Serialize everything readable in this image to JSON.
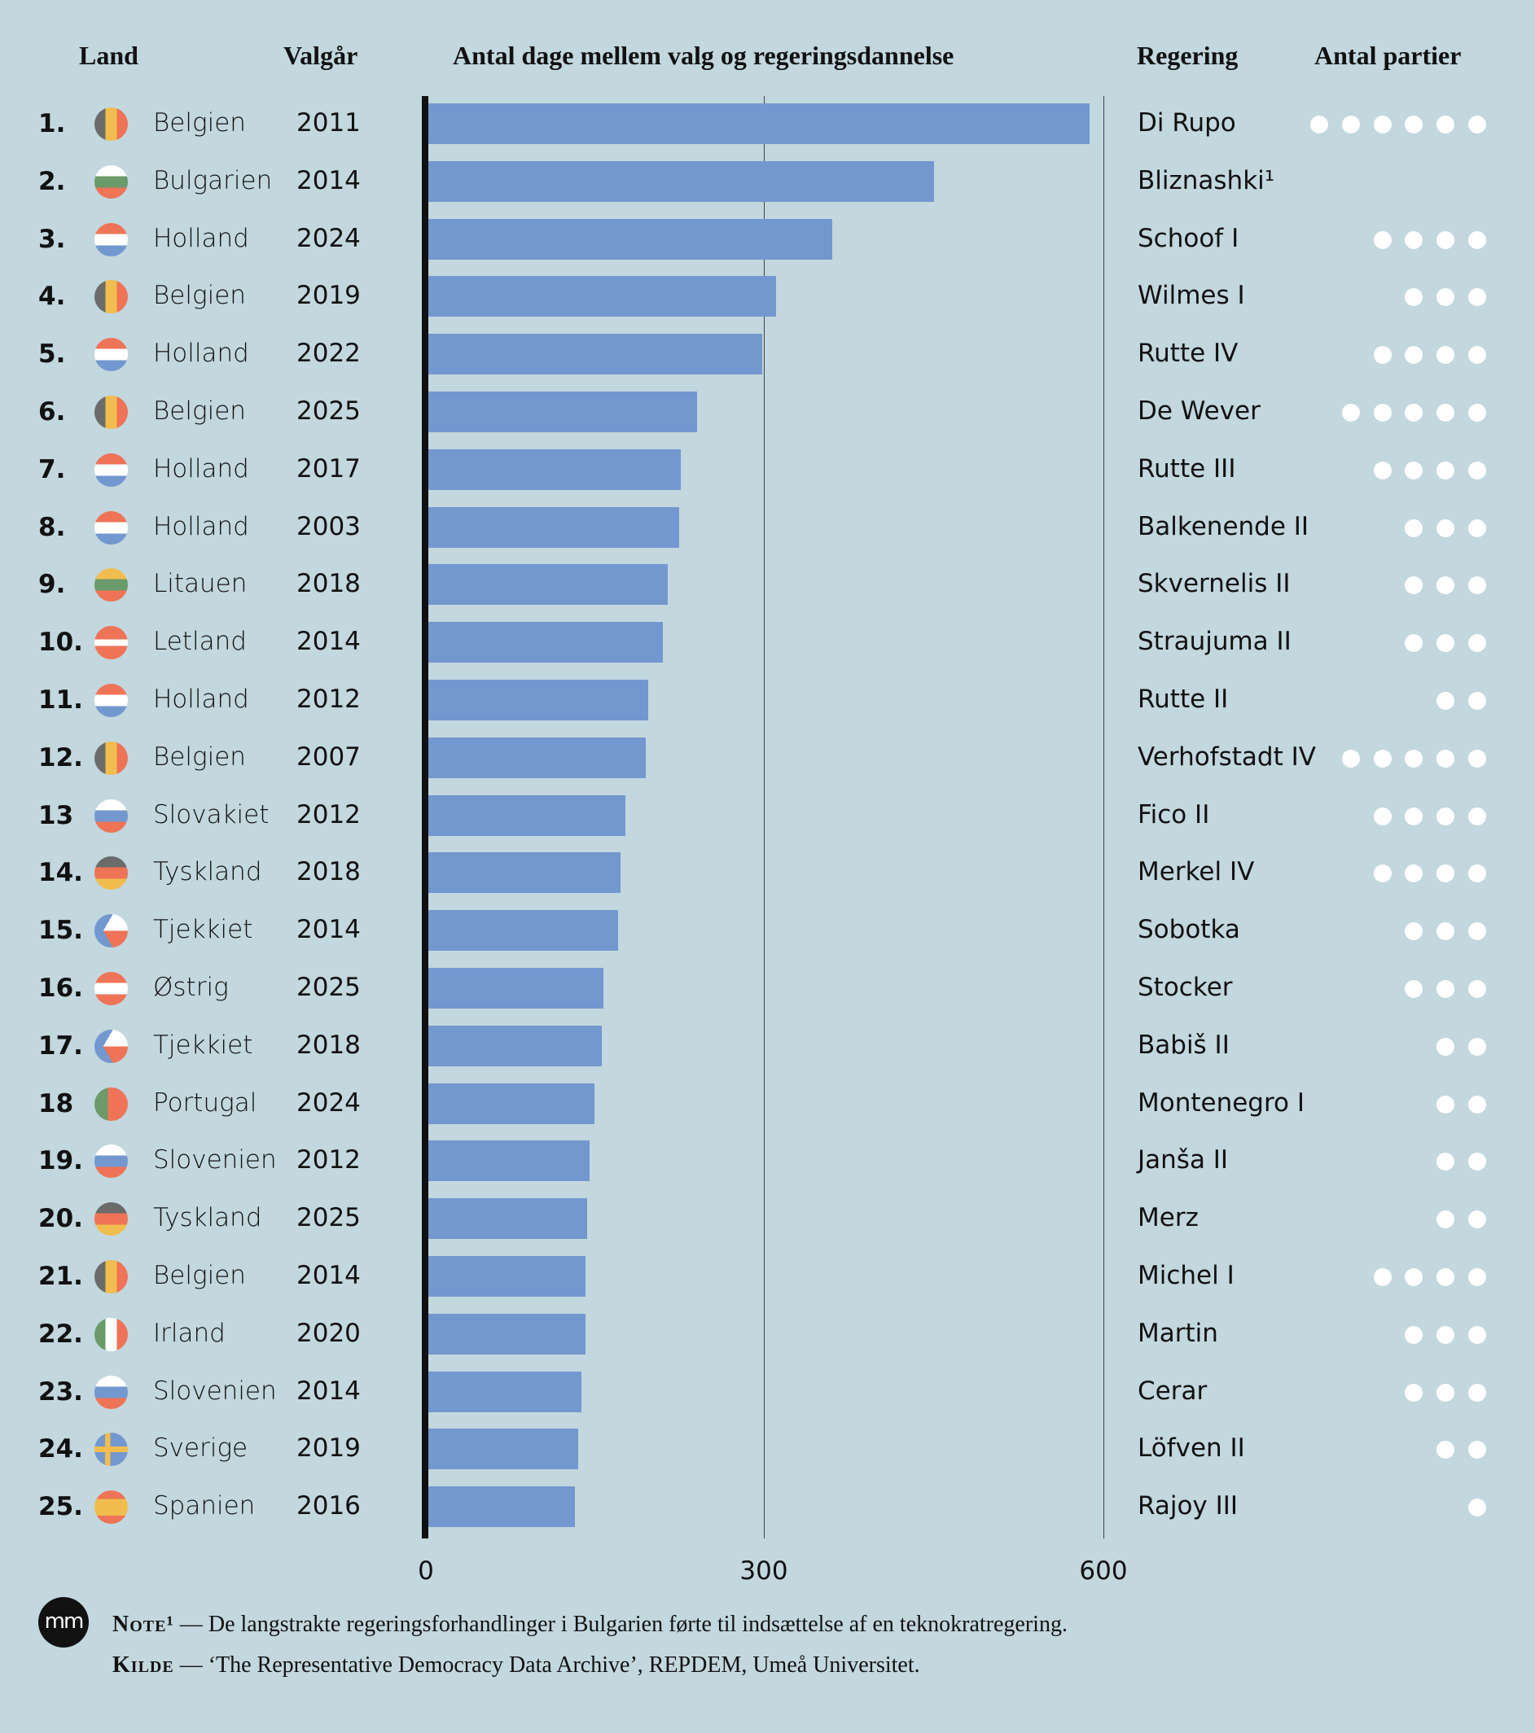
{
  "headers": {
    "land": "Land",
    "year": "Valgår",
    "days": "Antal dage mellem valg og regeringsdannelse",
    "gov": "Regering",
    "parties": "Antal partier"
  },
  "colors": {
    "bar": "#7397cf",
    "background": "#c2d7de",
    "dot": "#ffffff"
  },
  "chart_data": {
    "type": "bar",
    "orientation": "horizontal",
    "xlabel": "Antal dage mellem valg og regeringsdannelse",
    "xlim": [
      0,
      600
    ],
    "xticks": [
      "0",
      "300",
      "600"
    ],
    "grid": true,
    "rows": [
      {
        "rank": "1.",
        "country": "Belgien",
        "flag": "belgium",
        "year": "2011",
        "days": 588,
        "gov": "Di Rupo",
        "parties": 6
      },
      {
        "rank": "2.",
        "country": "Bulgarien",
        "flag": "bulgaria",
        "year": "2014",
        "days": 450,
        "gov": "Bliznashki¹",
        "parties": 0
      },
      {
        "rank": "3.",
        "country": "Holland",
        "flag": "netherlands",
        "year": "2024",
        "days": 360,
        "gov": "Schoof I",
        "parties": 4
      },
      {
        "rank": "4.",
        "country": "Belgien",
        "flag": "belgium",
        "year": "2019",
        "days": 310,
        "gov": "Wilmes I",
        "parties": 3
      },
      {
        "rank": "5.",
        "country": "Holland",
        "flag": "netherlands",
        "year": "2022",
        "days": 298,
        "gov": "Rutte IV",
        "parties": 4
      },
      {
        "rank": "6.",
        "country": "Belgien",
        "flag": "belgium",
        "year": "2025",
        "days": 240,
        "gov": "De Wever",
        "parties": 5
      },
      {
        "rank": "7.",
        "country": "Holland",
        "flag": "netherlands",
        "year": "2017",
        "days": 226,
        "gov": "Rutte III",
        "parties": 4
      },
      {
        "rank": "8.",
        "country": "Holland",
        "flag": "netherlands",
        "year": "2003",
        "days": 224,
        "gov": "Balkenende II",
        "parties": 3
      },
      {
        "rank": "9.",
        "country": "Litauen",
        "flag": "lithuania",
        "year": "2018",
        "days": 214,
        "gov": "Skvernelis II",
        "parties": 3
      },
      {
        "rank": "10.",
        "country": "Letland",
        "flag": "latvia",
        "year": "2014",
        "days": 210,
        "gov": "Straujuma II",
        "parties": 3
      },
      {
        "rank": "11.",
        "country": "Holland",
        "flag": "netherlands",
        "year": "2012",
        "days": 197,
        "gov": "Rutte II",
        "parties": 2
      },
      {
        "rank": "12.",
        "country": "Belgien",
        "flag": "belgium",
        "year": "2007",
        "days": 195,
        "gov": "Verhofstadt IV",
        "parties": 5
      },
      {
        "rank": "13",
        "country": "Slovakiet",
        "flag": "slovakia",
        "year": "2012",
        "days": 177,
        "gov": "Fico II",
        "parties": 4
      },
      {
        "rank": "14.",
        "country": "Tyskland",
        "flag": "germany",
        "year": "2018",
        "days": 172,
        "gov": "Merkel IV",
        "parties": 4
      },
      {
        "rank": "15.",
        "country": "Tjekkiet",
        "flag": "czech",
        "year": "2014",
        "days": 170,
        "gov": "Sobotka",
        "parties": 3
      },
      {
        "rank": "16.",
        "country": "Østrig",
        "flag": "austria",
        "year": "2025",
        "days": 157,
        "gov": "Stocker",
        "parties": 3
      },
      {
        "rank": "17.",
        "country": "Tjekkiet",
        "flag": "czech",
        "year": "2018",
        "days": 156,
        "gov": "Babiš II",
        "parties": 2
      },
      {
        "rank": "18",
        "country": "Portugal",
        "flag": "portugal",
        "year": "2024",
        "days": 149,
        "gov": "Montenegro I",
        "parties": 2
      },
      {
        "rank": "19.",
        "country": "Slovenien",
        "flag": "slovenia",
        "year": "2012",
        "days": 145,
        "gov": "Janša II",
        "parties": 2
      },
      {
        "rank": "20.",
        "country": "Tyskland",
        "flag": "germany",
        "year": "2025",
        "days": 143,
        "gov": "Merz",
        "parties": 2
      },
      {
        "rank": "21.",
        "country": "Belgien",
        "flag": "belgium",
        "year": "2014",
        "days": 141,
        "gov": "Michel I",
        "parties": 4
      },
      {
        "rank": "22.",
        "country": "Irland",
        "flag": "ireland",
        "year": "2020",
        "days": 141,
        "gov": "Martin",
        "parties": 3
      },
      {
        "rank": "23.",
        "country": "Slovenien",
        "flag": "slovenia",
        "year": "2014",
        "days": 138,
        "gov": "Cerar",
        "parties": 3
      },
      {
        "rank": "24.",
        "country": "Sverige",
        "flag": "sweden",
        "year": "2019",
        "days": 135,
        "gov": "Löfven II",
        "parties": 2
      },
      {
        "rank": "25.",
        "country": "Spanien",
        "flag": "spain",
        "year": "2016",
        "days": 132,
        "gov": "Rajoy III",
        "parties": 1
      }
    ]
  },
  "footer": {
    "logo": "mm",
    "note_label": "Note¹",
    "note_text": " — De langstrakte regeringsforhandlinger i Bulgarien førte til indsættelse af en teknokratregering.",
    "source_label": "Kilde",
    "source_text": " — ‘The Representative Democracy Data Archive’, REPDEM, Umeå Universitet."
  }
}
